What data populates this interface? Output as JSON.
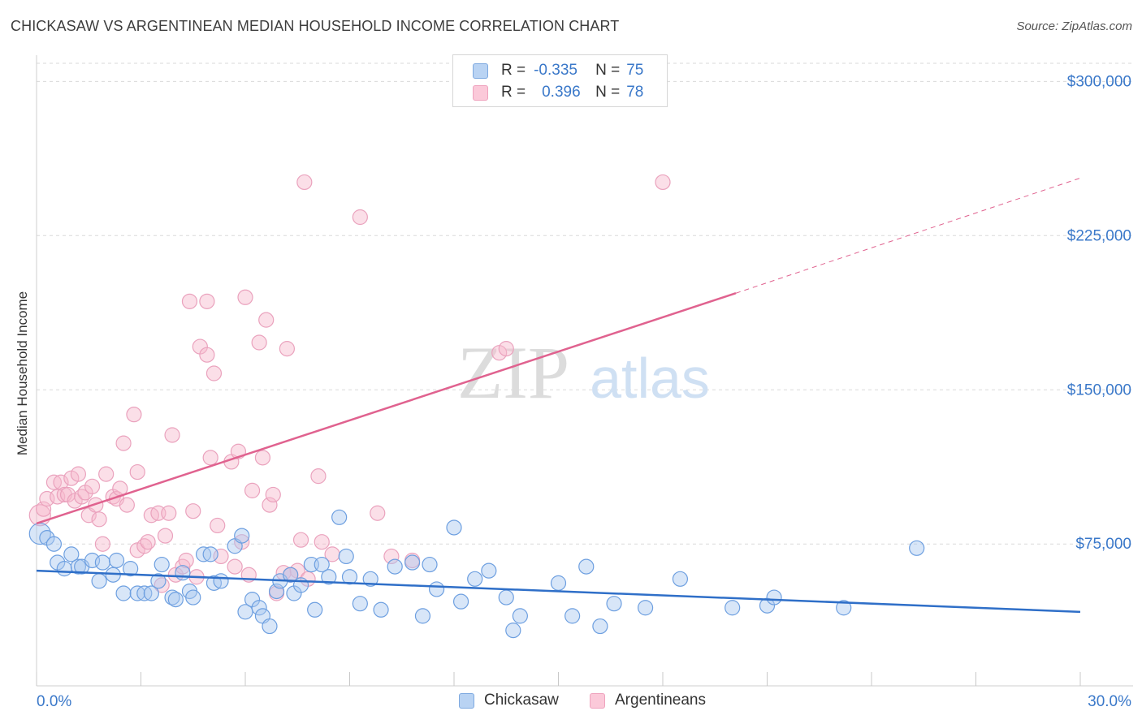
{
  "title": "CHICKASAW VS ARGENTINEAN MEDIAN HOUSEHOLD INCOME CORRELATION CHART",
  "source": "Source: ZipAtlas.com",
  "watermark": {
    "zip": "ZIP",
    "atlas": "atlas"
  },
  "colors": {
    "blue": "#3a78c9",
    "blue_fill": "#a9c8f0",
    "blue_line": "#2f6fc8",
    "pink_fill": "#f7b9cd",
    "pink_line": "#e0628f",
    "grid": "#d9d9d9",
    "axis_text": "#3a78c9"
  },
  "legend": {
    "r_label": "R =",
    "n_label": "N =",
    "rows": [
      {
        "series": "Chickasaw",
        "r": "-0.335",
        "n": "75"
      },
      {
        "series": "Argentineans",
        "r": "0.396",
        "n": "78"
      }
    ]
  },
  "chart_data": {
    "type": "scatter",
    "title": "CHICKASAW VS ARGENTINEAN MEDIAN HOUSEHOLD INCOME CORRELATION CHART",
    "xlabel": "",
    "ylabel": "Median Household Income",
    "x_tick_labels": [
      "0.0%",
      "30.0%"
    ],
    "y_tick_labels": [
      "$75,000",
      "$150,000",
      "$225,000",
      "$300,000"
    ],
    "y_ticks": [
      75000,
      150000,
      225000,
      300000
    ],
    "xlim": [
      0,
      30
    ],
    "ylim": [
      6000,
      310000
    ],
    "grid": true,
    "legend_position": "top-center",
    "series": [
      {
        "name": "Chickasaw",
        "trend": {
          "x": [
            0,
            30
          ],
          "y": [
            62000,
            42000
          ]
        },
        "points": [
          [
            0.1,
            80000
          ],
          [
            0.3,
            78000
          ],
          [
            0.5,
            75000
          ],
          [
            0.6,
            66000
          ],
          [
            0.8,
            63000
          ],
          [
            1.0,
            70000
          ],
          [
            1.2,
            64000
          ],
          [
            1.3,
            64000
          ],
          [
            1.6,
            67000
          ],
          [
            1.8,
            57000
          ],
          [
            1.9,
            66000
          ],
          [
            2.2,
            60000
          ],
          [
            2.3,
            67000
          ],
          [
            2.5,
            51000
          ],
          [
            2.7,
            63000
          ],
          [
            2.9,
            51000
          ],
          [
            3.1,
            51000
          ],
          [
            3.3,
            51000
          ],
          [
            3.5,
            57000
          ],
          [
            3.6,
            65000
          ],
          [
            3.9,
            49000
          ],
          [
            4.0,
            48000
          ],
          [
            4.2,
            61000
          ],
          [
            4.4,
            52000
          ],
          [
            4.5,
            49000
          ],
          [
            4.8,
            70000
          ],
          [
            5.0,
            70000
          ],
          [
            5.1,
            56000
          ],
          [
            5.3,
            57000
          ],
          [
            5.7,
            74000
          ],
          [
            5.9,
            79000
          ],
          [
            6.0,
            42000
          ],
          [
            6.2,
            48000
          ],
          [
            6.4,
            44000
          ],
          [
            6.5,
            40000
          ],
          [
            6.7,
            35000
          ],
          [
            6.9,
            52000
          ],
          [
            7.0,
            57000
          ],
          [
            7.3,
            60000
          ],
          [
            7.4,
            51000
          ],
          [
            7.6,
            55000
          ],
          [
            7.9,
            65000
          ],
          [
            8.0,
            43000
          ],
          [
            8.2,
            65000
          ],
          [
            8.4,
            59000
          ],
          [
            8.7,
            88000
          ],
          [
            8.9,
            69000
          ],
          [
            9.0,
            59000
          ],
          [
            9.3,
            46000
          ],
          [
            9.6,
            58000
          ],
          [
            9.9,
            43000
          ],
          [
            10.3,
            64000
          ],
          [
            10.8,
            66000
          ],
          [
            11.1,
            40000
          ],
          [
            11.3,
            65000
          ],
          [
            11.5,
            53000
          ],
          [
            12.0,
            83000
          ],
          [
            12.2,
            47000
          ],
          [
            12.6,
            58000
          ],
          [
            13.0,
            62000
          ],
          [
            13.5,
            49000
          ],
          [
            13.7,
            33000
          ],
          [
            13.9,
            40000
          ],
          [
            15.0,
            56000
          ],
          [
            15.4,
            40000
          ],
          [
            15.8,
            64000
          ],
          [
            16.2,
            35000
          ],
          [
            16.6,
            46000
          ],
          [
            17.5,
            44000
          ],
          [
            18.5,
            58000
          ],
          [
            20.0,
            44000
          ],
          [
            21.0,
            45000
          ],
          [
            21.2,
            49000
          ],
          [
            23.2,
            44000
          ],
          [
            25.3,
            73000
          ]
        ]
      },
      {
        "name": "Argentineans",
        "trend": {
          "x": [
            0,
            20.1
          ],
          "y": [
            85000,
            197000
          ]
        },
        "trend_extension": {
          "x": [
            20.1,
            30
          ],
          "y": [
            197000,
            253000
          ]
        },
        "points": [
          [
            0.1,
            89000
          ],
          [
            0.2,
            92000
          ],
          [
            0.3,
            97000
          ],
          [
            0.5,
            105000
          ],
          [
            0.6,
            98000
          ],
          [
            0.7,
            105000
          ],
          [
            0.8,
            99000
          ],
          [
            0.9,
            99000
          ],
          [
            1.0,
            107000
          ],
          [
            1.1,
            96000
          ],
          [
            1.2,
            109000
          ],
          [
            1.3,
            98000
          ],
          [
            1.4,
            100000
          ],
          [
            1.5,
            89000
          ],
          [
            1.6,
            103000
          ],
          [
            1.7,
            94000
          ],
          [
            1.8,
            87000
          ],
          [
            1.9,
            75000
          ],
          [
            2.0,
            109000
          ],
          [
            2.2,
            98000
          ],
          [
            2.3,
            97000
          ],
          [
            2.4,
            102000
          ],
          [
            2.5,
            124000
          ],
          [
            2.6,
            94000
          ],
          [
            2.8,
            138000
          ],
          [
            2.9,
            72000
          ],
          [
            2.9,
            110000
          ],
          [
            3.1,
            74000
          ],
          [
            3.2,
            76000
          ],
          [
            3.3,
            89000
          ],
          [
            3.5,
            90000
          ],
          [
            3.6,
            55000
          ],
          [
            3.7,
            79000
          ],
          [
            3.8,
            90000
          ],
          [
            3.9,
            128000
          ],
          [
            4.0,
            60000
          ],
          [
            4.2,
            64000
          ],
          [
            4.3,
            67000
          ],
          [
            4.4,
            193000
          ],
          [
            4.5,
            91000
          ],
          [
            4.6,
            59000
          ],
          [
            4.7,
            171000
          ],
          [
            4.9,
            167000
          ],
          [
            4.9,
            193000
          ],
          [
            5.0,
            117000
          ],
          [
            5.1,
            158000
          ],
          [
            5.2,
            84000
          ],
          [
            5.3,
            69000
          ],
          [
            5.6,
            115000
          ],
          [
            5.7,
            64000
          ],
          [
            5.8,
            120000
          ],
          [
            5.9,
            76000
          ],
          [
            6.0,
            195000
          ],
          [
            6.1,
            60000
          ],
          [
            6.2,
            101000
          ],
          [
            6.4,
            173000
          ],
          [
            6.5,
            117000
          ],
          [
            6.6,
            184000
          ],
          [
            6.7,
            94000
          ],
          [
            6.8,
            99000
          ],
          [
            6.9,
            51000
          ],
          [
            7.1,
            61000
          ],
          [
            7.2,
            170000
          ],
          [
            7.5,
            62000
          ],
          [
            7.6,
            77000
          ],
          [
            7.7,
            251000
          ],
          [
            7.8,
            58000
          ],
          [
            8.1,
            108000
          ],
          [
            8.2,
            76000
          ],
          [
            8.5,
            70000
          ],
          [
            9.3,
            234000
          ],
          [
            9.8,
            90000
          ],
          [
            10.2,
            69000
          ],
          [
            10.8,
            67000
          ],
          [
            13.3,
            168000
          ],
          [
            13.5,
            170000
          ],
          [
            18.0,
            251000
          ],
          [
            7.3,
            60000
          ]
        ]
      }
    ]
  }
}
